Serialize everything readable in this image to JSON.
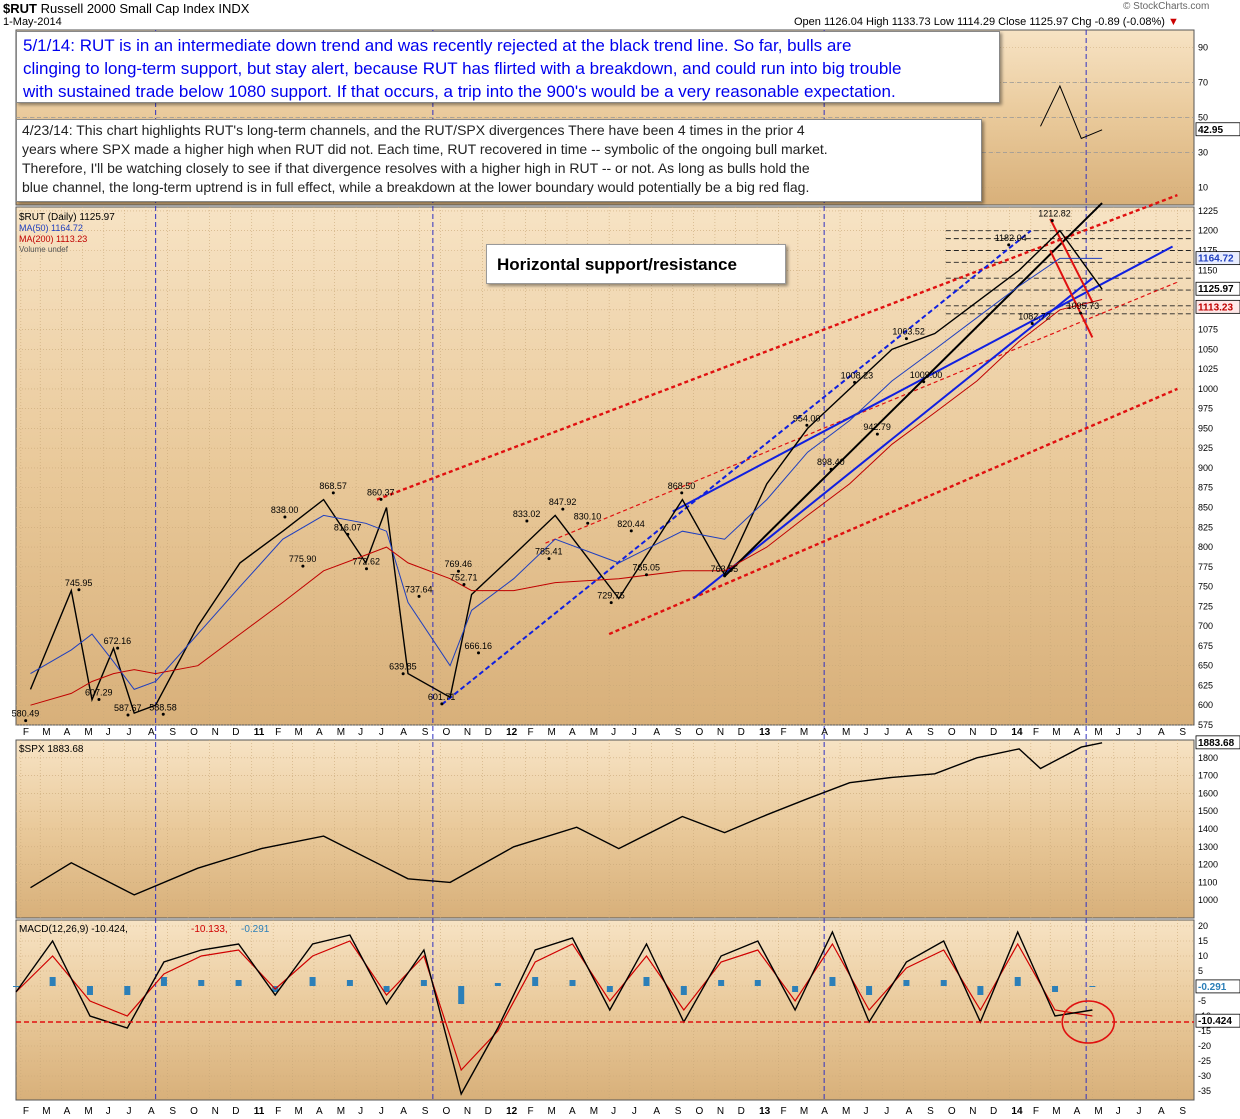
{
  "header": {
    "symbol": "$RUT",
    "name": "Russell 2000 Small Cap Index",
    "exchange": "INDX",
    "date": "1-May-2014",
    "open_label": "Open",
    "open": "1126.04",
    "high_label": "High",
    "high": "1133.73",
    "low_label": "Low",
    "low": "1114.29",
    "close_label": "Close",
    "close": "1125.97",
    "chg_label": "Chg",
    "chg": "-0.89 (-0.08%)",
    "copyright": "© StockCharts.com"
  },
  "annotations": {
    "note_1": [
      "5/1/14:  RUT is in an intermediate down trend and was recently rejected at the black trend line.  So far, bulls are",
      "clinging to long-term support, but stay alert, because RUT has flirted with a breakdown, and could run into big trouble",
      "with sustained trade below 1080 support.  If that occurs, a trip into the 900's would be a very reasonable expectation."
    ],
    "note_2": [
      "4/23/14:  This chart highlights RUT's long-term channels, and the RUT/SPX divergences  There have been 4 times in the prior 4",
      "years where SPX made a higher high when RUT did not.  Each time, RUT recovered in time -- symbolic of the ongoing bull market.",
      "Therefore, I'll be watching closely to see if that divergence resolves with a higher high in RUT -- or not.  As long as bulls hold the",
      "blue channel, the long-term uptrend is in full effect, while a breakdown at the lower boundary would potentially be a big red flag."
    ],
    "callout": "Horizontal support/resistance"
  },
  "chart_data": [
    {
      "type": "line",
      "panel": "RSI",
      "ylim": [
        0,
        100
      ],
      "yticks": [
        10,
        30,
        50,
        70,
        90
      ],
      "reference_lines": [
        30,
        50,
        70
      ],
      "last_value": "42.95",
      "x": [
        "2014-02",
        "2014-03",
        "2014-04",
        "2014-05"
      ],
      "values": [
        45,
        68,
        38,
        43
      ]
    },
    {
      "type": "candlestick",
      "panel": "price",
      "legend": [
        "$RUT (Daily) 1125.97",
        "MA(50) 1164.72",
        "MA(200) 1113.23",
        "Volume undef"
      ],
      "ylim": [
        575,
        1230
      ],
      "yticks": [
        575,
        600,
        625,
        650,
        675,
        700,
        725,
        750,
        775,
        800,
        825,
        850,
        875,
        900,
        925,
        950,
        975,
        1000,
        1025,
        1050,
        1075,
        1100,
        1125,
        1150,
        1175,
        1200,
        1225
      ],
      "x_tick_labels": [
        "F",
        "M",
        "A",
        "M",
        "J",
        "J",
        "A",
        "S",
        "O",
        "N",
        "D",
        "11",
        "F",
        "M",
        "A",
        "M",
        "J",
        "J",
        "A",
        "S",
        "O",
        "N",
        "D",
        "12",
        "F",
        "M",
        "A",
        "M",
        "J",
        "J",
        "A",
        "S",
        "O",
        "N",
        "D",
        "13",
        "F",
        "M",
        "A",
        "M",
        "J",
        "J",
        "A",
        "S",
        "O",
        "N",
        "D",
        "14",
        "F",
        "M",
        "A",
        "M",
        "J",
        "J",
        "A",
        "S"
      ],
      "price_labels": [
        {
          "x": "2010-02-08",
          "value": 580.49,
          "label": "580.49"
        },
        {
          "x": "2010-04-26",
          "value": 745.95,
          "label": "745.95"
        },
        {
          "x": "2010-05-25",
          "value": 607.29,
          "label": "607.29"
        },
        {
          "x": "2010-06-21",
          "value": 672.16,
          "label": "672.16"
        },
        {
          "x": "2010-07-06",
          "value": 587.67,
          "label": "587.67"
        },
        {
          "x": "2010-08-26",
          "value": 588.58,
          "label": "588.58"
        },
        {
          "x": "2011-02-18",
          "value": 838.0,
          "label": "838.00"
        },
        {
          "x": "2011-03-16",
          "value": 775.9,
          "label": "775.90"
        },
        {
          "x": "2011-04-29",
          "value": 868.57,
          "label": "868.57"
        },
        {
          "x": "2011-05-20",
          "value": 816.07,
          "label": "816.07"
        },
        {
          "x": "2011-06-16",
          "value": 772.62,
          "label": "772.62"
        },
        {
          "x": "2011-07-07",
          "value": 860.37,
          "label": "860.37"
        },
        {
          "x": "2011-08-31",
          "value": 737.64,
          "label": "737.64"
        },
        {
          "x": "2011-08-08",
          "value": 639.85,
          "label": "639.85"
        },
        {
          "x": "2011-10-03",
          "value": 601.71,
          "label": "601.71"
        },
        {
          "x": "2011-10-27",
          "value": 769.46,
          "label": "769.46"
        },
        {
          "x": "2011-11-04",
          "value": 752.71,
          "label": "752.71"
        },
        {
          "x": "2011-11-25",
          "value": 666.16,
          "label": "666.16"
        },
        {
          "x": "2012-02-03",
          "value": 833.02,
          "label": "833.02"
        },
        {
          "x": "2012-03-06",
          "value": 785.41,
          "label": "785.41"
        },
        {
          "x": "2012-03-26",
          "value": 847.92,
          "label": "847.92"
        },
        {
          "x": "2012-05-01",
          "value": 830.1,
          "label": "830.10"
        },
        {
          "x": "2012-06-04",
          "value": 729.75,
          "label": "729.75"
        },
        {
          "x": "2012-07-03",
          "value": 820.44,
          "label": "820.44"
        },
        {
          "x": "2012-07-25",
          "value": 765.05,
          "label": "765.05"
        },
        {
          "x": "2012-09-14",
          "value": 868.5,
          "label": "868.50"
        },
        {
          "x": "2012-11-15",
          "value": 763.55,
          "label": "763.55"
        },
        {
          "x": "2013-03-14",
          "value": 954.0,
          "label": "954.00"
        },
        {
          "x": "2013-04-18",
          "value": 898.4,
          "label": "898.40"
        },
        {
          "x": "2013-05-22",
          "value": 1008.23,
          "label": "1008.23"
        },
        {
          "x": "2013-06-24",
          "value": 942.79,
          "label": "942.79"
        },
        {
          "x": "2013-08-05",
          "value": 1063.52,
          "label": "1063.52"
        },
        {
          "x": "2013-08-30",
          "value": 1009.0,
          "label": "1009.00"
        },
        {
          "x": "2013-12-31",
          "value": 1182.04,
          "label": "1182.04"
        },
        {
          "x": "2014-02-03",
          "value": 1082.72,
          "label": "1082.72"
        },
        {
          "x": "2014-03-04",
          "value": 1212.82,
          "label": "1212.82"
        },
        {
          "x": "2014-04-14",
          "value": 1095.73,
          "label": "1095.73"
        }
      ],
      "last_values": {
        "close": "1125.97",
        "ma50": "1164.72",
        "ma200": "1113.23"
      },
      "series": [
        {
          "name": "$RUT (Daily)",
          "color": "#000000",
          "x": [
            "2010-02",
            "2010-04",
            "2010-05",
            "2010-06",
            "2010-07",
            "2010-08",
            "2010-10",
            "2010-12",
            "2011-02",
            "2011-04",
            "2011-06",
            "2011-07",
            "2011-08",
            "2011-10",
            "2011-11",
            "2012-01",
            "2012-03",
            "2012-06",
            "2012-09",
            "2012-11",
            "2013-01",
            "2013-03",
            "2013-05",
            "2013-07",
            "2013-09",
            "2013-11",
            "2014-01",
            "2014-03",
            "2014-05"
          ],
          "values": [
            620,
            745,
            607,
            672,
            590,
            600,
            700,
            780,
            820,
            860,
            780,
            850,
            640,
            610,
            740,
            790,
            840,
            735,
            860,
            765,
            880,
            950,
            1000,
            1050,
            1070,
            1110,
            1150,
            1200,
            1126
          ]
        },
        {
          "name": "MA(50)",
          "color": "#1f3fbf",
          "values": [
            640,
            670,
            690,
            655,
            620,
            630,
            690,
            750,
            810,
            840,
            830,
            820,
            730,
            650,
            720,
            760,
            810,
            780,
            820,
            810,
            860,
            920,
            960,
            1010,
            1050,
            1090,
            1130,
            1165,
            1165
          ]
        },
        {
          "name": "MA(200)",
          "color": "#c00000",
          "values": [
            600,
            615,
            630,
            640,
            645,
            640,
            650,
            690,
            730,
            770,
            790,
            800,
            780,
            760,
            745,
            745,
            755,
            760,
            770,
            770,
            800,
            840,
            880,
            930,
            970,
            1010,
            1060,
            1100,
            1113
          ]
        }
      ]
    },
    {
      "type": "line",
      "panel": "$SPX",
      "legend": "$SPX 1883.68",
      "ylim": [
        900,
        1900
      ],
      "yticks": [
        1000,
        1100,
        1200,
        1300,
        1400,
        1500,
        1600,
        1700,
        1800
      ],
      "last_value": "1883.68",
      "x": [
        "2010-02",
        "2010-04",
        "2010-07",
        "2010-10",
        "2011-01",
        "2011-04",
        "2011-08",
        "2011-10",
        "2012-01",
        "2012-04",
        "2012-06",
        "2012-09",
        "2012-11",
        "2013-01",
        "2013-03",
        "2013-05",
        "2013-07",
        "2013-09",
        "2013-11",
        "2014-01",
        "2014-02",
        "2014-04",
        "2014-05"
      ],
      "values": [
        1070,
        1210,
        1030,
        1180,
        1290,
        1360,
        1120,
        1100,
        1300,
        1410,
        1290,
        1470,
        1380,
        1480,
        1570,
        1660,
        1690,
        1710,
        1800,
        1850,
        1740,
        1860,
        1884
      ]
    },
    {
      "type": "line",
      "panel": "MACD",
      "legend": [
        "MACD(12,26,9) -10.424",
        "-10.133",
        "-0.291"
      ],
      "ylim": [
        -38,
        22
      ],
      "yticks": [
        -35,
        -30,
        -25,
        -20,
        -15,
        -10,
        -5,
        0,
        5,
        10,
        15,
        20
      ],
      "last_values": {
        "macd": "-10.424",
        "signal": "-10.133",
        "histogram": "-0.291"
      },
      "reference_line": -12,
      "series": [
        {
          "name": "MACD(12,26,9)",
          "color": "#000000",
          "values": [
            -2,
            15,
            -10,
            -14,
            8,
            12,
            14,
            -3,
            14,
            17,
            -6,
            12,
            -36,
            -14,
            12,
            16,
            -8,
            14,
            -12,
            10,
            15,
            -8,
            18,
            -12,
            8,
            15,
            -12,
            18,
            -10,
            -8
          ]
        },
        {
          "name": "Signal",
          "color": "#d00000",
          "values": [
            -2,
            10,
            -5,
            -10,
            4,
            10,
            12,
            -1,
            10,
            15,
            -3,
            10,
            -28,
            -15,
            8,
            14,
            -5,
            10,
            -8,
            8,
            12,
            -5,
            14,
            -8,
            6,
            12,
            -8,
            14,
            -8,
            -10
          ]
        },
        {
          "name": "Histogram",
          "color": "#2c7fb8",
          "values": [
            0,
            3,
            -3,
            -3,
            3,
            2,
            2,
            -2,
            3,
            2,
            -2,
            2,
            -6,
            1,
            3,
            2,
            -2,
            3,
            -3,
            2,
            2,
            -2,
            3,
            -3,
            2,
            2,
            -3,
            3,
            -2,
            0
          ]
        }
      ]
    }
  ]
}
